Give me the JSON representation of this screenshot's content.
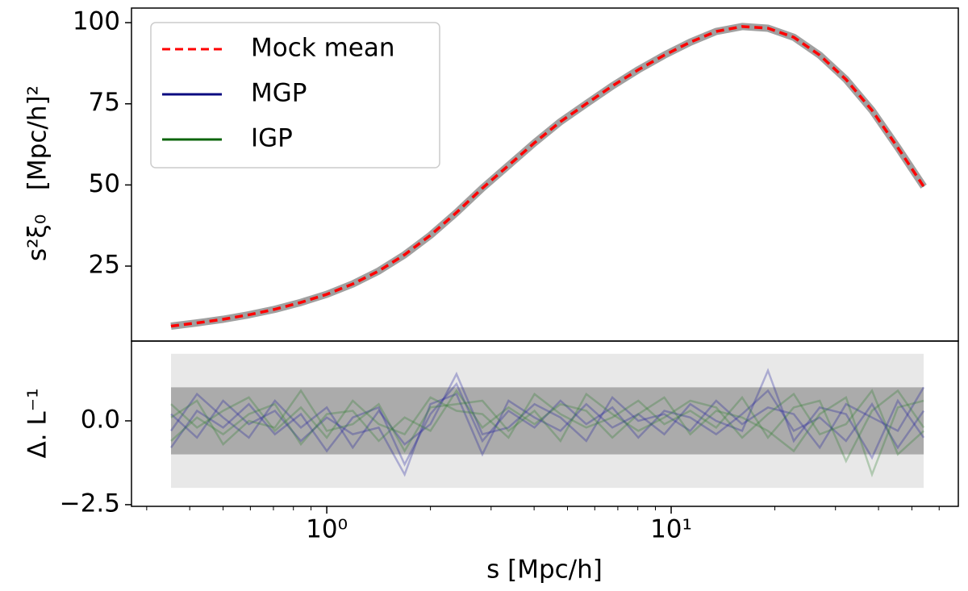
{
  "chart_data": [
    {
      "type": "line",
      "ylabel": "s²ξ₀   [Mpc/h]²",
      "xscale": "log",
      "legend": "upper left",
      "x": [
        0.353,
        0.42,
        0.5,
        0.594,
        0.707,
        0.841,
        1.0,
        1.19,
        1.415,
        1.683,
        2.0,
        2.38,
        2.83,
        3.37,
        4.01,
        4.77,
        5.67,
        6.75,
        8.03,
        9.55,
        11.36,
        13.51,
        16.07,
        19.1,
        22.7,
        27.0,
        32.2,
        38.3,
        45.5,
        54.1
      ],
      "xlim": [
        0.271,
        68.2
      ],
      "ylim": [
        1.9,
        104.5
      ],
      "yticks": [
        25,
        50,
        75,
        100
      ],
      "series": [
        {
          "name": "MGP",
          "color": "#0a0a80",
          "values": [
            6.5,
            7.5,
            8.6,
            10,
            11.7,
            13.8,
            16.3,
            19.5,
            23.5,
            28.5,
            34.5,
            41.5,
            49,
            56,
            63,
            69.5,
            75,
            80.5,
            85.5,
            90,
            94,
            97.3,
            98.8,
            98.3,
            95.5,
            90,
            82.5,
            73,
            61.5,
            49.5
          ]
        },
        {
          "name": "IGP",
          "color": "#0b640b",
          "values": [
            6.5,
            7.5,
            8.6,
            10,
            11.7,
            13.8,
            16.3,
            19.5,
            23.5,
            28.5,
            34.5,
            41.5,
            49,
            56,
            63,
            69.5,
            75,
            80.5,
            85.5,
            90,
            94,
            97.3,
            98.8,
            98.3,
            95.5,
            90,
            82.5,
            73,
            61.5,
            49.5
          ]
        },
        {
          "name": "Mock mean",
          "color": "#ff0000",
          "dashed": true,
          "values": [
            6.5,
            7.5,
            8.6,
            10,
            11.7,
            13.8,
            16.3,
            19.5,
            23.5,
            28.5,
            34.5,
            41.5,
            49,
            56,
            63,
            69.5,
            75,
            80.5,
            85.5,
            90,
            94,
            97.3,
            98.8,
            98.3,
            95.5,
            90,
            82.5,
            73,
            61.5,
            49.5
          ]
        }
      ]
    },
    {
      "type": "line",
      "ylabel": "Δ. L⁻¹",
      "xlabel": "s [Mpc/h]",
      "xscale": "log",
      "x": [
        0.353,
        0.42,
        0.5,
        0.594,
        0.707,
        0.841,
        1.0,
        1.19,
        1.415,
        1.683,
        2.0,
        2.38,
        2.83,
        3.37,
        4.01,
        4.77,
        5.67,
        6.75,
        8.03,
        9.55,
        11.36,
        13.51,
        16.07,
        19.1,
        22.7,
        27.0,
        32.2,
        38.3,
        45.5,
        54.1
      ],
      "xlim": [
        0.271,
        68.2
      ],
      "xticks": [
        {
          "value": 1,
          "label": "10⁰"
        },
        {
          "value": 10,
          "label": "10¹"
        }
      ],
      "ylim": [
        -2.55,
        2.38
      ],
      "yticks": [
        {
          "value": -2.5,
          "label": "−2.5"
        },
        {
          "value": 0,
          "label": "0.0"
        }
      ],
      "bands": [
        {
          "range": [
            -2,
            2
          ],
          "color": "#e8e8e8"
        },
        {
          "range": [
            -1,
            1
          ],
          "color": "#ababab"
        }
      ],
      "series": [
        {
          "color": "#1f1f9a",
          "values": [
            -0.8,
            0.3,
            -0.2,
            0.5,
            -0.4,
            0.2,
            -0.9,
            0.1,
            0.4,
            -1.3,
            0.2,
            1.1,
            -0.6,
            0.3,
            -0.2,
            0.6,
            -0.1,
            0.4,
            -0.5,
            0.3,
            0.1,
            -0.4,
            0.2,
            0.9,
            -0.3,
            0.1,
            -0.6,
            0.5,
            -0.8,
            0.3
          ]
        },
        {
          "color": "#1f1f9a",
          "values": [
            0.2,
            -0.5,
            0.6,
            -0.1,
            0.3,
            -0.6,
            0.1,
            -0.4,
            -0.2,
            -1.6,
            0.5,
            0.8,
            -1.0,
            0.6,
            0.1,
            -0.3,
            0.5,
            -0.2,
            0.2,
            -0.4,
            0.5,
            0.0,
            -0.3,
            1.5,
            -0.6,
            0.4,
            0.2,
            -1.1,
            0.6,
            -0.5
          ]
        },
        {
          "color": "#1f1f9a",
          "values": [
            -0.3,
            0.8,
            0.1,
            -0.5,
            0.6,
            -0.2,
            0.4,
            -0.8,
            0.3,
            -0.7,
            -0.1,
            1.4,
            -0.4,
            -0.2,
            0.5,
            0.1,
            -0.6,
            0.7,
            0.0,
            0.2,
            -0.3,
            0.6,
            -0.1,
            0.4,
            0.2,
            -0.8,
            0.5,
            0.1,
            -0.3,
            1.0
          ]
        },
        {
          "color": "#2e7d2e",
          "values": [
            0.5,
            -0.2,
            0.3,
            0.7,
            -0.3,
            0.4,
            -0.5,
            0.6,
            -0.1,
            -0.4,
            0.7,
            0.3,
            0.2,
            -0.5,
            0.8,
            0.2,
            -0.2,
            0.1,
            0.6,
            -0.1,
            0.3,
            -0.2,
            0.7,
            -0.5,
            0.4,
            0.6,
            -1.2,
            0.3,
            0.9,
            -0.2
          ]
        },
        {
          "color": "#2e7d2e",
          "values": [
            -0.6,
            0.1,
            -0.4,
            0.2,
            0.5,
            -0.7,
            0.2,
            0.3,
            -0.6,
            0.1,
            -0.3,
            0.9,
            -0.2,
            0.4,
            -0.1,
            0.5,
            0.3,
            -0.5,
            0.2,
            0.7,
            -0.4,
            0.3,
            0.1,
            -0.3,
            -0.9,
            0.2,
            0.7,
            -1.6,
            0.4,
            0.6
          ]
        },
        {
          "color": "#2e7d2e",
          "values": [
            0.1,
            0.6,
            -0.7,
            0.0,
            -0.2,
            0.9,
            -0.3,
            -0.1,
            0.5,
            -0.9,
            0.4,
            0.5,
            0.6,
            -0.3,
            0.3,
            -0.6,
            0.8,
            0.2,
            -0.3,
            0.1,
            0.6,
            0.4,
            -0.5,
            0.2,
            0.8,
            -0.4,
            -0.1,
            0.9,
            -1.0,
            -0.3
          ]
        }
      ]
    }
  ]
}
